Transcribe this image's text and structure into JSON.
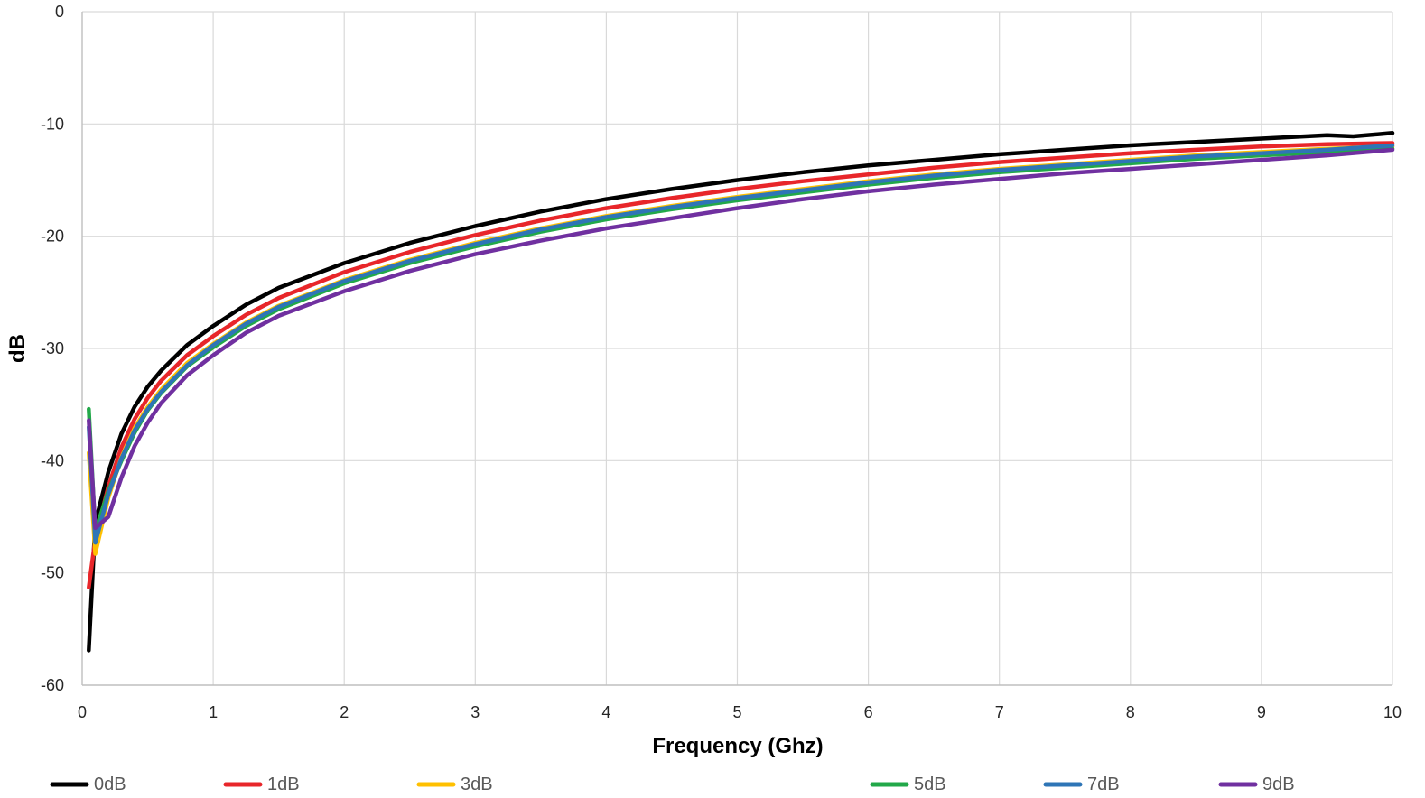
{
  "chart_data": {
    "type": "line",
    "xlabel": "Frequency (Ghz)",
    "ylabel": "dB",
    "xlim": [
      0,
      10
    ],
    "ylim": [
      -60,
      0
    ],
    "xticks": [
      0,
      1,
      2,
      3,
      4,
      5,
      6,
      7,
      8,
      9,
      10
    ],
    "yticks": [
      0,
      -10,
      -20,
      -30,
      -40,
      -50,
      -60
    ],
    "grid": true,
    "legend_position": "bottom",
    "series": [
      {
        "name": "0dB",
        "color": "#000000",
        "points": [
          [
            0.05,
            -56.9
          ],
          [
            0.1,
            -45.5
          ],
          [
            0.2,
            -41.0
          ],
          [
            0.3,
            -37.6
          ],
          [
            0.4,
            -35.2
          ],
          [
            0.5,
            -33.4
          ],
          [
            0.6,
            -32.0
          ],
          [
            0.8,
            -29.7
          ],
          [
            1.0,
            -28.0
          ],
          [
            1.25,
            -26.1
          ],
          [
            1.5,
            -24.6
          ],
          [
            2.0,
            -22.4
          ],
          [
            2.5,
            -20.6
          ],
          [
            3.0,
            -19.1
          ],
          [
            3.5,
            -17.8
          ],
          [
            4.0,
            -16.7
          ],
          [
            4.5,
            -15.8
          ],
          [
            5.0,
            -15.0
          ],
          [
            5.5,
            -14.3
          ],
          [
            6.0,
            -13.7
          ],
          [
            6.5,
            -13.2
          ],
          [
            7.0,
            -12.7
          ],
          [
            7.5,
            -12.3
          ],
          [
            8.0,
            -11.9
          ],
          [
            8.5,
            -11.6
          ],
          [
            9.0,
            -11.3
          ],
          [
            9.5,
            -11.0
          ],
          [
            9.7,
            -11.1
          ],
          [
            10.0,
            -10.8
          ]
        ]
      },
      {
        "name": "1dB",
        "color": "#E8262A",
        "points": [
          [
            0.05,
            -51.3
          ],
          [
            0.1,
            -47.0
          ],
          [
            0.2,
            -42.3
          ],
          [
            0.3,
            -38.8
          ],
          [
            0.4,
            -36.3
          ],
          [
            0.5,
            -34.4
          ],
          [
            0.6,
            -32.9
          ],
          [
            0.8,
            -30.6
          ],
          [
            1.0,
            -28.9
          ],
          [
            1.25,
            -27.0
          ],
          [
            1.5,
            -25.5
          ],
          [
            2.0,
            -23.2
          ],
          [
            2.5,
            -21.4
          ],
          [
            3.0,
            -19.9
          ],
          [
            3.5,
            -18.6
          ],
          [
            4.0,
            -17.5
          ],
          [
            4.5,
            -16.6
          ],
          [
            5.0,
            -15.8
          ],
          [
            5.5,
            -15.1
          ],
          [
            6.0,
            -14.5
          ],
          [
            6.5,
            -13.9
          ],
          [
            7.0,
            -13.4
          ],
          [
            7.5,
            -13.0
          ],
          [
            8.0,
            -12.6
          ],
          [
            8.5,
            -12.3
          ],
          [
            9.0,
            -12.0
          ],
          [
            9.5,
            -11.8
          ],
          [
            10.0,
            -11.7
          ]
        ]
      },
      {
        "name": "3dB",
        "color": "#FFC000",
        "points": [
          [
            0.05,
            -39.3
          ],
          [
            0.1,
            -48.3
          ],
          [
            0.2,
            -43.3
          ],
          [
            0.3,
            -39.7
          ],
          [
            0.4,
            -37.1
          ],
          [
            0.5,
            -35.2
          ],
          [
            0.6,
            -33.7
          ],
          [
            0.8,
            -31.3
          ],
          [
            1.0,
            -29.6
          ],
          [
            1.25,
            -27.7
          ],
          [
            1.5,
            -26.2
          ],
          [
            2.0,
            -23.9
          ],
          [
            2.5,
            -22.1
          ],
          [
            3.0,
            -20.6
          ],
          [
            3.5,
            -19.3
          ],
          [
            4.0,
            -18.2
          ],
          [
            4.5,
            -17.3
          ],
          [
            5.0,
            -16.5
          ],
          [
            5.5,
            -15.8
          ],
          [
            6.0,
            -15.1
          ],
          [
            6.5,
            -14.5
          ],
          [
            7.0,
            -14.0
          ],
          [
            7.5,
            -13.6
          ],
          [
            8.0,
            -13.2
          ],
          [
            8.5,
            -12.8
          ],
          [
            9.0,
            -12.5
          ],
          [
            9.5,
            -12.2
          ],
          [
            10.0,
            -12.0
          ]
        ]
      },
      {
        "name": "5dB",
        "color": "#22A849",
        "points": [
          [
            0.05,
            -35.4
          ],
          [
            0.1,
            -46.3
          ],
          [
            0.2,
            -42.7
          ],
          [
            0.3,
            -40.0
          ],
          [
            0.4,
            -37.5
          ],
          [
            0.5,
            -35.5
          ],
          [
            0.6,
            -34.0
          ],
          [
            0.8,
            -31.6
          ],
          [
            1.0,
            -29.9
          ],
          [
            1.25,
            -28.0
          ],
          [
            1.5,
            -26.5
          ],
          [
            2.0,
            -24.2
          ],
          [
            2.5,
            -22.4
          ],
          [
            3.0,
            -20.9
          ],
          [
            3.5,
            -19.6
          ],
          [
            4.0,
            -18.5
          ],
          [
            4.5,
            -17.6
          ],
          [
            5.0,
            -16.8
          ],
          [
            5.5,
            -16.1
          ],
          [
            6.0,
            -15.4
          ],
          [
            6.5,
            -14.8
          ],
          [
            7.0,
            -14.3
          ],
          [
            7.5,
            -13.9
          ],
          [
            8.0,
            -13.5
          ],
          [
            8.5,
            -13.1
          ],
          [
            9.0,
            -12.8
          ],
          [
            9.5,
            -12.5
          ],
          [
            10.0,
            -12.2
          ]
        ]
      },
      {
        "name": "7dB",
        "color": "#2E75B6",
        "points": [
          [
            0.05,
            -37.0
          ],
          [
            0.1,
            -47.3
          ],
          [
            0.2,
            -43.0
          ],
          [
            0.3,
            -39.8
          ],
          [
            0.4,
            -37.3
          ],
          [
            0.5,
            -35.4
          ],
          [
            0.6,
            -33.9
          ],
          [
            0.8,
            -31.5
          ],
          [
            1.0,
            -29.7
          ],
          [
            1.25,
            -27.8
          ],
          [
            1.5,
            -26.3
          ],
          [
            2.0,
            -24.0
          ],
          [
            2.5,
            -22.2
          ],
          [
            3.0,
            -20.7
          ],
          [
            3.5,
            -19.4
          ],
          [
            4.0,
            -18.3
          ],
          [
            4.5,
            -17.4
          ],
          [
            5.0,
            -16.6
          ],
          [
            5.5,
            -15.9
          ],
          [
            6.0,
            -15.2
          ],
          [
            6.5,
            -14.6
          ],
          [
            7.0,
            -14.1
          ],
          [
            7.5,
            -13.7
          ],
          [
            8.0,
            -13.3
          ],
          [
            8.5,
            -12.9
          ],
          [
            9.0,
            -12.6
          ],
          [
            9.5,
            -12.3
          ],
          [
            10.0,
            -11.9
          ]
        ]
      },
      {
        "name": "9dB",
        "color": "#7030A0",
        "points": [
          [
            0.05,
            -36.4
          ],
          [
            0.1,
            -46.0
          ],
          [
            0.2,
            -45.0
          ],
          [
            0.3,
            -41.5
          ],
          [
            0.4,
            -38.7
          ],
          [
            0.5,
            -36.6
          ],
          [
            0.6,
            -34.9
          ],
          [
            0.8,
            -32.4
          ],
          [
            1.0,
            -30.6
          ],
          [
            1.25,
            -28.6
          ],
          [
            1.5,
            -27.1
          ],
          [
            2.0,
            -24.9
          ],
          [
            2.5,
            -23.1
          ],
          [
            3.0,
            -21.6
          ],
          [
            3.5,
            -20.4
          ],
          [
            4.0,
            -19.3
          ],
          [
            4.5,
            -18.4
          ],
          [
            5.0,
            -17.5
          ],
          [
            5.5,
            -16.7
          ],
          [
            6.0,
            -16.0
          ],
          [
            6.5,
            -15.4
          ],
          [
            7.0,
            -14.9
          ],
          [
            7.5,
            -14.4
          ],
          [
            8.0,
            -14.0
          ],
          [
            8.5,
            -13.6
          ],
          [
            9.0,
            -13.2
          ],
          [
            9.5,
            -12.8
          ],
          [
            10.0,
            -12.3
          ]
        ]
      }
    ]
  }
}
